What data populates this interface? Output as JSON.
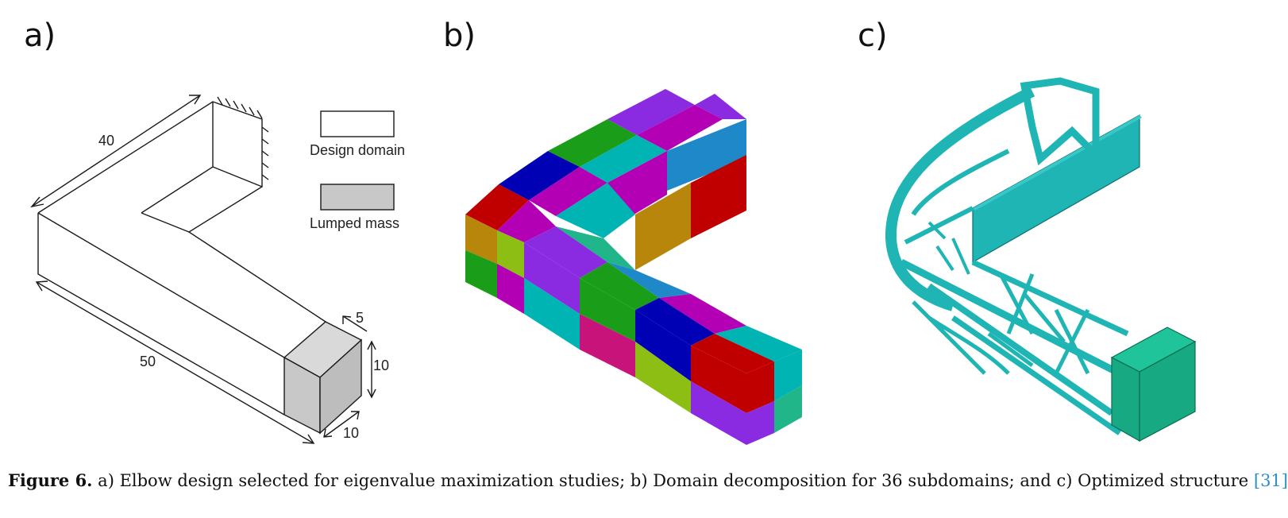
{
  "panels": [
    {
      "label": "a)"
    },
    {
      "label": "b)"
    },
    {
      "label": "c)"
    }
  ],
  "panel_a": {
    "dimensions": {
      "length_top": "40",
      "length_bottom": "50",
      "depth": "5",
      "height": "10",
      "width": "10"
    },
    "legend": {
      "design_domain": "Design domain",
      "lumped_mass": "Lumped mass"
    },
    "colors": {
      "lumped_mass_fill": "#c8c8c8",
      "design_domain_fill": "#ffffff"
    }
  },
  "panel_b": {
    "subdomain_colors": [
      "#b8860b",
      "#1a9e1a",
      "#c00000",
      "#0000b4",
      "#b400b4",
      "#00b4b4",
      "#1e88c8",
      "#8a2be2",
      "#8cbe14",
      "#20b68a"
    ]
  },
  "panel_c": {
    "colors": {
      "structure": "#1fb5b5",
      "mass": "#17a982"
    }
  },
  "caption": {
    "figure": "Figure 6.",
    "text": " a) Elbow design selected for eigenvalue maximization studies; b) Domain decomposition for 36 subdomains; and c) Optimized structure ",
    "ref": "[31]"
  }
}
